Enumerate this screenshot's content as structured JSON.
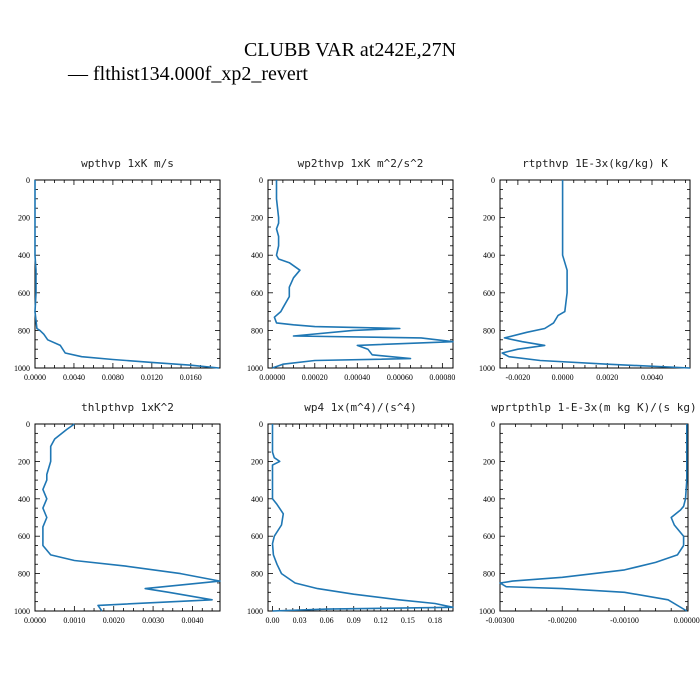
{
  "figure": {
    "title": "CLUBB VAR at242E,27N",
    "legend_label": "— flthist134.000f_xp2_revert",
    "series_color": "#1f77b4"
  },
  "chart_data": [
    {
      "type": "line",
      "title": "wpthvp   1xK m/s",
      "xlim": [
        0,
        0.019
      ],
      "ylim": [
        1000,
        0
      ],
      "xticks": [
        "0.0000",
        "0.0040",
        "0.0080",
        "0.0120",
        "0.0160"
      ],
      "xtick_values": [
        0,
        0.004,
        0.008,
        0.012,
        0.016
      ],
      "yticks": [
        "0",
        "200",
        "400",
        "600",
        "800",
        "1000"
      ],
      "series": [
        {
          "x": [
            0,
            0,
            0,
            0.0001,
            0.0001,
            0,
            0.0002,
            0.0005,
            0.0009,
            0.0013,
            0.0026,
            0.0031,
            0.0048,
            0.008,
            0.012,
            0.016,
            0.0189
          ],
          "y": [
            0,
            200,
            400,
            480,
            600,
            700,
            790,
            800,
            820,
            850,
            880,
            920,
            940,
            955,
            970,
            985,
            1000
          ]
        }
      ]
    },
    {
      "type": "line",
      "title": "wp2thvp   1xK m^2/s^2",
      "xlim": [
        -2e-05,
        0.00085
      ],
      "ylim": [
        1000,
        0
      ],
      "xticks": [
        "0.00000",
        "0.00020",
        "0.00040",
        "0.00060",
        "0.00080"
      ],
      "xtick_values": [
        0,
        0.0002,
        0.0004,
        0.0006,
        0.0008
      ],
      "yticks": [
        "0",
        "200",
        "400",
        "600",
        "800",
        "1000"
      ],
      "series": [
        {
          "x": [
            2e-05,
            2e-05,
            3e-05,
            3e-05,
            2e-05,
            3e-05,
            3e-05,
            2e-05,
            3e-05,
            8e-05,
            0.00013,
            0.0001,
            8e-05,
            8e-05,
            5e-05,
            4e-05,
            1e-05,
            2e-05,
            0.0001,
            0.0002,
            0.0006,
            0.00038,
            0.0001,
            0.0007,
            0.00085,
            0.0004,
            0.00045,
            0.00047,
            0.00065,
            0.0002,
            5e-05,
            0
          ],
          "y": [
            0,
            100,
            200,
            230,
            260,
            300,
            350,
            400,
            420,
            440,
            480,
            520,
            570,
            620,
            680,
            700,
            730,
            760,
            770,
            780,
            790,
            800,
            830,
            840,
            860,
            880,
            900,
            930,
            950,
            960,
            980,
            1000
          ]
        }
      ]
    },
    {
      "type": "line",
      "title": "rtpthvp   1E-3x(kg/kg) K",
      "xlim": [
        -0.0028,
        0.0057
      ],
      "ylim": [
        1000,
        0
      ],
      "xticks": [
        "-0.0020",
        "0.0000",
        "0.0020",
        "0.0040"
      ],
      "xtick_values": [
        -0.002,
        0,
        0.002,
        0.004
      ],
      "yticks": [
        "0",
        "200",
        "400",
        "600",
        "800",
        "1000"
      ],
      "series": [
        {
          "x": [
            0,
            0,
            0,
            0.0002,
            0.0002,
            0.0001,
            -0.0002,
            -0.0004,
            -0.0008,
            -0.0016,
            -0.0026,
            -0.0018,
            -0.0008,
            -0.002,
            -0.0027,
            -0.0024,
            -0.001,
            0.002,
            0.0057
          ],
          "y": [
            0,
            200,
            400,
            480,
            600,
            700,
            720,
            760,
            790,
            810,
            840,
            860,
            880,
            900,
            920,
            940,
            960,
            980,
            1000
          ]
        }
      ]
    },
    {
      "type": "line",
      "title": "thlpthvp   1xK^2",
      "xlim": [
        0,
        0.0047
      ],
      "ylim": [
        1000,
        0
      ],
      "xticks": [
        "0.0000",
        "0.0010",
        "0.0020",
        "0.0030",
        "0.0040"
      ],
      "xtick_values": [
        0,
        0.001,
        0.002,
        0.003,
        0.004
      ],
      "yticks": [
        "0",
        "200",
        "400",
        "600",
        "800",
        "1000"
      ],
      "series": [
        {
          "x": [
            0.001,
            0.0008,
            0.0005,
            0.0004,
            0.0004,
            0.0003,
            0.0003,
            0.0002,
            0.0003,
            0.0002,
            0.0003,
            0.0002,
            0.0002,
            0.0004,
            0.001,
            0.0023,
            0.0037,
            0.0047,
            0.0028,
            0.0034,
            0.0045,
            0.0016,
            0.0017
          ],
          "y": [
            0,
            30,
            80,
            120,
            200,
            270,
            300,
            350,
            400,
            450,
            500,
            550,
            650,
            700,
            730,
            760,
            800,
            840,
            880,
            900,
            940,
            970,
            1000
          ]
        }
      ]
    },
    {
      "type": "line",
      "title": "wp4   1x(m^4)/(s^4)",
      "xlim": [
        -0.005,
        0.2
      ],
      "ylim": [
        1000,
        0
      ],
      "xticks": [
        "0.00",
        "0.03",
        "0.06",
        "0.09",
        "0.12",
        "0.15",
        "0.18"
      ],
      "xtick_values": [
        0,
        0.03,
        0.06,
        0.09,
        0.12,
        0.15,
        0.18
      ],
      "yticks": [
        "0",
        "200",
        "400",
        "600",
        "800",
        "1000"
      ],
      "series": [
        {
          "x": [
            0,
            0,
            0.002,
            0.008,
            0,
            0,
            0.005,
            0.012,
            0.01,
            0.002,
            0,
            0.001,
            0.005,
            0.01,
            0.025,
            0.05,
            0.09,
            0.14,
            0.18,
            0.2,
            0.06,
            0
          ],
          "y": [
            0,
            150,
            180,
            200,
            220,
            400,
            430,
            480,
            540,
            600,
            640,
            700,
            750,
            800,
            850,
            880,
            910,
            940,
            960,
            980,
            990,
            1000
          ]
        }
      ]
    },
    {
      "type": "line",
      "title": "wprtpthlp   1-E-3x(m kg K)/(s kg)",
      "xlim": [
        -0.003,
        2e-05
      ],
      "ylim": [
        1000,
        0
      ],
      "xticks": [
        "-0.00300",
        "-0.00200",
        "-0.00100",
        "0.00000"
      ],
      "xtick_values": [
        -0.003,
        -0.002,
        -0.001,
        0
      ],
      "yticks": [
        "0",
        "200",
        "400",
        "600",
        "800",
        "1000"
      ],
      "series": [
        {
          "x": [
            0,
            0,
            -2e-05,
            -5e-05,
            -0.0001,
            -0.00025,
            -0.0002,
            -5e-05,
            -5e-05,
            -0.00015,
            -0.0005,
            -0.001,
            -0.002,
            -0.0028,
            -0.003,
            -0.0029,
            -0.002,
            -0.001,
            -0.0003,
            0
          ],
          "y": [
            0,
            300,
            400,
            440,
            460,
            500,
            540,
            600,
            650,
            700,
            740,
            780,
            820,
            840,
            850,
            870,
            880,
            900,
            940,
            1000
          ]
        }
      ]
    }
  ]
}
